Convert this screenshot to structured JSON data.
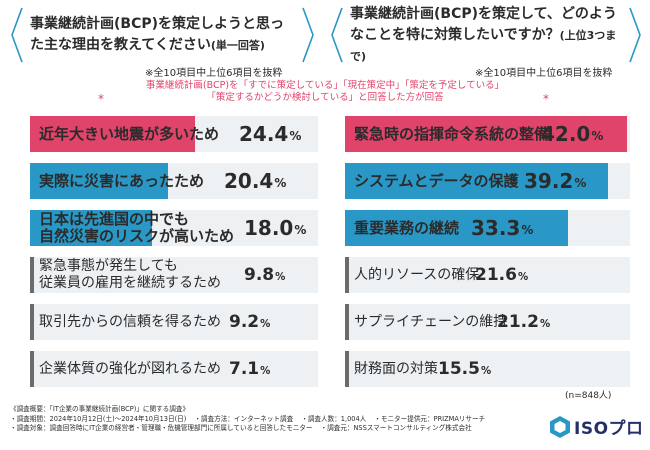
{
  "left_question": {
    "main": "事業継続計画(BCP)を策定しようと思った主な理由を教えてください",
    "sub": "(単一回答)"
  },
  "right_question": {
    "main": "事業継続計画(BCP)を策定して、どのようなことを特に対策したいですか？",
    "sub": "(上位3つまで)"
  },
  "note_left": "※全10項目中上位6項目を抜粋",
  "note_right": "※全10項目中上位6項目を抜粋",
  "subnote_line1": "事業継続計画(BCP)を「すでに策定している」「現在策定中」「策定を予定している」",
  "subnote_line2": "「策定するかどうか検討している」と回答した方が回答",
  "subnote_mark": "*",
  "n_label": "(n=848人)",
  "colors": {
    "pink": "#e0446a",
    "blue": "#2a98c6",
    "gray": "#6b6b6b",
    "pale": "#edf1f4",
    "navy": "#25306b"
  },
  "chart_data": [
    {
      "type": "bar",
      "orientation": "horizontal",
      "categories": [
        "近年大きい地震が多いため",
        "実際に災害にあったため",
        "日本は先進国の中でも自然災害のリスクが高いため",
        "緊急事態が発生しても従業員の雇用を継続するため",
        "取引先からの信頼を得るため",
        "企業体質の強化が図れるため"
      ],
      "label_lines": [
        [
          "近年大きい地震が多いため"
        ],
        [
          "実際に災害にあったため"
        ],
        [
          "日本は先進国の中でも",
          "自然災害のリスクが高いため"
        ],
        [
          "緊急事態が発生しても",
          "従業員の雇用を継続するため"
        ],
        [
          "取引先からの信頼を得るため"
        ],
        [
          "企業体質の強化が図れるため"
        ]
      ],
      "values": [
        24.4,
        20.4,
        18.0,
        9.8,
        9.2,
        7.1
      ],
      "value_labels": [
        "24.4",
        "20.4",
        "18.0",
        "9.8",
        "9.2",
        "7.1"
      ],
      "unit": "%",
      "highlight": [
        "pink",
        "blue",
        "blue",
        "gray",
        "gray",
        "gray"
      ]
    },
    {
      "type": "bar",
      "orientation": "horizontal",
      "categories": [
        "緊急時の指揮命令系統の整備",
        "システムとデータの保護",
        "重要業務の継続",
        "人的リソースの確保",
        "サプライチェーンの維持",
        "財務面の対策"
      ],
      "label_lines": [
        [
          "緊急時の指揮命令系統の整備"
        ],
        [
          "システムとデータの保護"
        ],
        [
          "重要業務の継続"
        ],
        [
          "人的リソースの確保"
        ],
        [
          "サプライチェーンの維持"
        ],
        [
          "財務面の対策"
        ]
      ],
      "values": [
        42.0,
        39.2,
        33.3,
        21.6,
        21.2,
        15.5
      ],
      "value_labels": [
        "42.0",
        "39.2",
        "33.3",
        "21.6",
        "21.2",
        "15.5"
      ],
      "unit": "%",
      "highlight": [
        "pink",
        "blue",
        "blue",
        "gray",
        "gray",
        "gray"
      ]
    }
  ],
  "footer": {
    "line1": [
      "《調査概要：「IT企業の事業継続計画(BCP)」に関する調査》"
    ],
    "line2": [
      "・調査期間：2024年10月12日(土)〜2024年10月13日(日)",
      "・調査方法：インターネット調査",
      "・調査人数：1,004人",
      "・モニター提供元：PRIZMAリサーチ"
    ],
    "line3": [
      "・調査対象：調査回答時にIT企業の経営者・管理職・危機管理部門に所属していると回答したモニター",
      "・調査元：NSSスマートコンサルティング株式会社"
    ]
  },
  "logo_text": "ISOプロ"
}
